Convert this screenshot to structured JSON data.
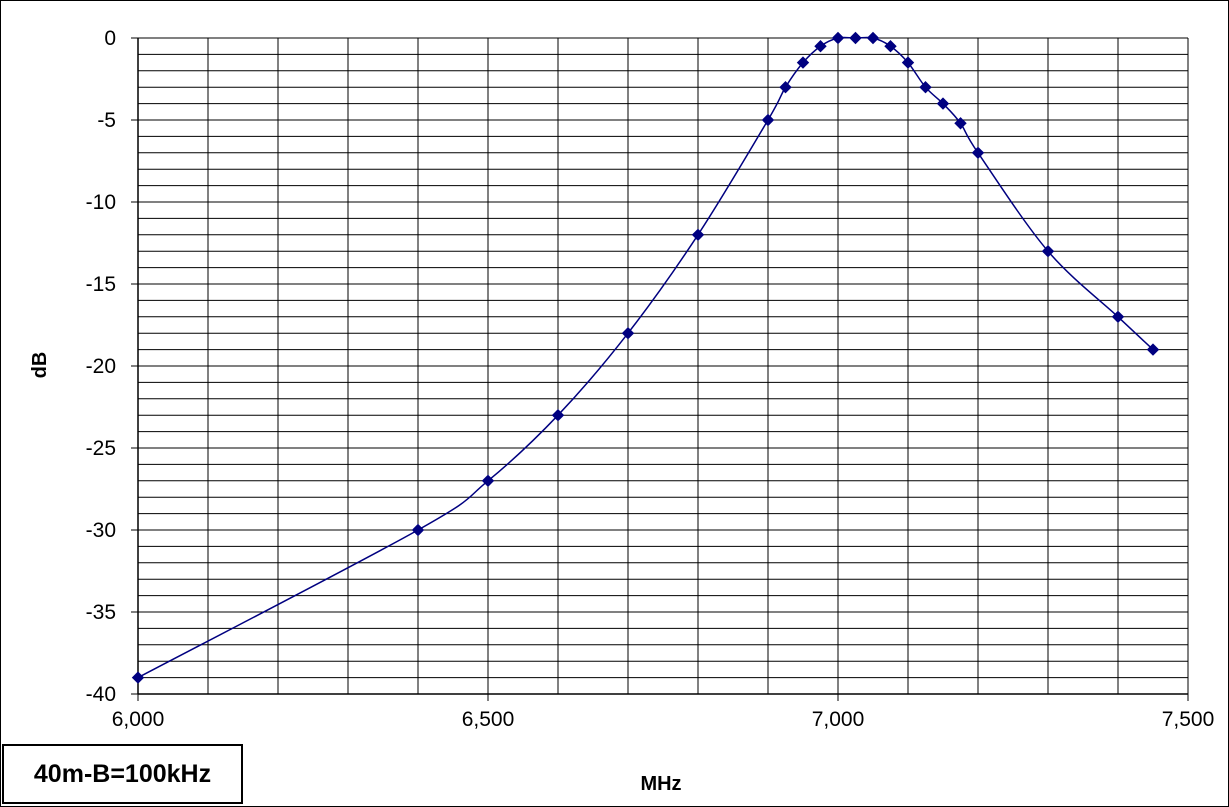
{
  "chart_data": {
    "type": "line",
    "title": "",
    "xlabel": "MHz",
    "ylabel": "dB",
    "xlim": [
      6000,
      7500
    ],
    "ylim": [
      -40,
      0
    ],
    "x_ticks": [
      6000,
      6500,
      7000,
      7500
    ],
    "x_tick_labels": [
      "6,000",
      "6,500",
      "7,000",
      "7,500"
    ],
    "y_ticks": [
      0,
      -5,
      -10,
      -15,
      -20,
      -25,
      -30,
      -35,
      -40
    ],
    "y_tick_labels": [
      "0",
      "-5",
      "-10",
      "-15",
      "-20",
      "-25",
      "-30",
      "-35",
      "-40"
    ],
    "grid": true,
    "legend": "none",
    "line_color": "#000080",
    "series": [
      {
        "x": [
          6000,
          6400,
          6500,
          6600,
          6700,
          6800,
          6900,
          6925,
          6950,
          6975,
          7000,
          7025,
          7050,
          7075,
          7100,
          7125,
          7150,
          7175,
          7200,
          7300,
          7400,
          7450
        ],
        "values": [
          -39,
          -30,
          -27,
          -23,
          -18,
          -12,
          -5,
          -3,
          -1.5,
          -0.5,
          0,
          0,
          0,
          -0.5,
          -1.5,
          -3,
          -4,
          -5.2,
          -7,
          -13,
          -17,
          -19
        ]
      }
    ]
  },
  "annotation": {
    "label": "40m-B=100kHz"
  }
}
